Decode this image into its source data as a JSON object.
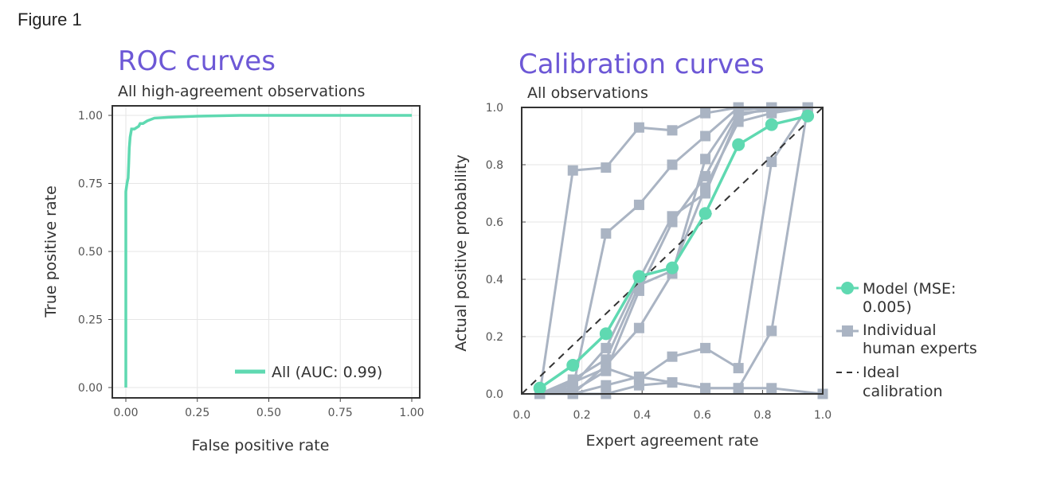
{
  "figure_label": "Figure 1",
  "colors": {
    "title": "#6d58d6",
    "model": "#5fd9b1",
    "expert": "#aab4c3",
    "ideal": "#333333"
  },
  "chart_data": [
    {
      "type": "line",
      "title": "ROC curves",
      "subtitle": "All high-agreement observations",
      "xlabel": "False positive rate",
      "ylabel": "True positive rate",
      "xlim": [
        0,
        1
      ],
      "ylim": [
        0,
        1
      ],
      "xticks": [
        "0.00",
        "0.25",
        "0.50",
        "0.75",
        "1.00"
      ],
      "yticks": [
        "0.00",
        "0.25",
        "0.50",
        "0.75",
        "1.00"
      ],
      "grid": true,
      "legend_position": "bottom-right",
      "series": [
        {
          "name": "All (AUC: 0.99)",
          "x": [
            0,
            0,
            0.004,
            0.008,
            0.01,
            0.012,
            0.015,
            0.02,
            0.03,
            0.045,
            0.05,
            0.06,
            0.075,
            0.1,
            0.15,
            0.25,
            0.4,
            0.6,
            1.0
          ],
          "y": [
            0,
            0.72,
            0.75,
            0.77,
            0.82,
            0.88,
            0.92,
            0.95,
            0.95,
            0.96,
            0.97,
            0.97,
            0.98,
            0.99,
            0.993,
            0.997,
            1.0,
            1.0,
            1.0
          ]
        }
      ]
    },
    {
      "type": "line",
      "title": "Calibration curves",
      "subtitle": "All observations",
      "xlabel": "Expert agreement rate",
      "ylabel": "Actual positive probability",
      "xlim": [
        0,
        1
      ],
      "ylim": [
        0,
        1
      ],
      "xticks": [
        "0.0",
        "0.2",
        "0.4",
        "0.6",
        "0.8",
        "1.0"
      ],
      "yticks": [
        "0.0",
        "0.2",
        "0.4",
        "0.6",
        "0.8",
        "1.0"
      ],
      "grid": true,
      "legend_position": "right",
      "legend": [
        "Model (MSE: 0.005)",
        "Individual human experts",
        "Ideal calibration"
      ],
      "legend_lines": [
        [
          "Model (MSE:",
          "0.005)"
        ],
        [
          "Individual",
          "human experts"
        ],
        [
          "Ideal",
          "calibration"
        ]
      ],
      "x": [
        0.06,
        0.17,
        0.28,
        0.39,
        0.5,
        0.61,
        0.72,
        0.83,
        0.95
      ],
      "model": [
        0.02,
        0.1,
        0.21,
        0.41,
        0.44,
        0.63,
        0.87,
        0.94,
        0.97
      ],
      "experts": [
        [
          0.0,
          0.78,
          0.79,
          0.93,
          0.92,
          0.98,
          1.0,
          1.0,
          1.0
        ],
        [
          0.0,
          0.02,
          0.56,
          0.66,
          0.8,
          0.9,
          1.0,
          1.0,
          1.0
        ],
        [
          0.0,
          0.03,
          0.16,
          0.4,
          0.62,
          0.7,
          0.97,
          1.0,
          1.0
        ],
        [
          0.0,
          0.0,
          0.1,
          0.23,
          0.42,
          0.82,
          0.99,
          1.0,
          1.0
        ],
        [
          0.0,
          0.01,
          0.08,
          0.36,
          0.6,
          0.76,
          0.98,
          0.99,
          1.0
        ],
        [
          0.0,
          0.05,
          0.12,
          0.38,
          0.43,
          0.72,
          0.95,
          0.98,
          1.0
        ],
        [
          0.0,
          0.04,
          0.09,
          0.05,
          0.13,
          0.16,
          0.09,
          0.81,
          1.0
        ],
        [
          0.0,
          0.0,
          0.0,
          0.03,
          0.04,
          0.02,
          0.02,
          0.22,
          1.0
        ],
        [
          0.0,
          0.0,
          0.03,
          0.06,
          0.04,
          0.02,
          0.02,
          0.02,
          0.0
        ]
      ],
      "ideal": {
        "x": [
          0,
          1
        ],
        "y": [
          0,
          1
        ]
      }
    }
  ]
}
